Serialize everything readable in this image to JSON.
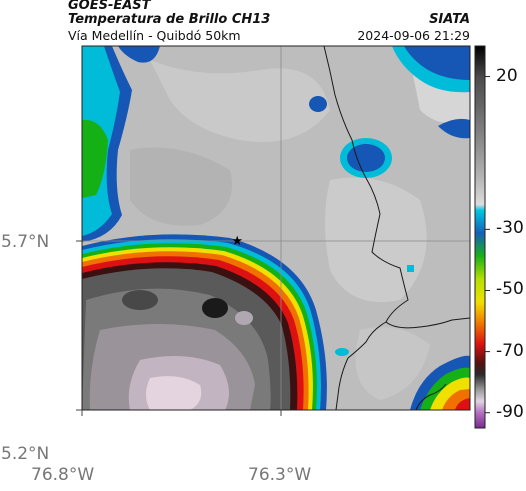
{
  "header": {
    "title": "GOES-EAST",
    "subtitle": "Temperatura de Brillo CH13",
    "region": "Vía Medellín - Quibdó 50km",
    "source": "SIATA",
    "datetime": "2024-09-06 21:29"
  },
  "axes": {
    "y_ticks": [
      "5.7°N",
      "5.2°N"
    ],
    "x_ticks": [
      "76.8°W",
      "76.3°W"
    ]
  },
  "colorbar": {
    "ticks": [
      "20",
      "-30",
      "-50",
      "-70",
      "-90"
    ],
    "tick_values": [
      20,
      -30,
      -50,
      -70,
      -90
    ],
    "range": [
      -95,
      30
    ]
  },
  "chart_data": {
    "type": "heatmap",
    "title": "Temperatura de Brillo CH13",
    "xlabel": "",
    "ylabel": "",
    "xlim": [
      -76.8,
      -76.1
    ],
    "ylim": [
      5.2,
      5.9
    ],
    "x_ticks": [
      -76.8,
      -76.3
    ],
    "y_ticks": [
      5.2,
      5.7
    ],
    "colorbar_ticks": [
      20,
      -30,
      -50,
      -70,
      -90
    ],
    "marker": {
      "symbol": "star",
      "lon": -76.41,
      "lat": 5.7
    },
    "grid": true,
    "colors": {
      "cloud_top_light": "#ead9e4",
      "cloud_top_dark": "#4a4a4a",
      "ring_red": "#dd1111",
      "ring_yellow": "#f0e000",
      "ring_green": "#15b015",
      "ring_cyan": "#00bcd8",
      "ring_blue": "#1656b4",
      "warm_gray": "#bebebe",
      "magenta": "#a050b0"
    }
  }
}
